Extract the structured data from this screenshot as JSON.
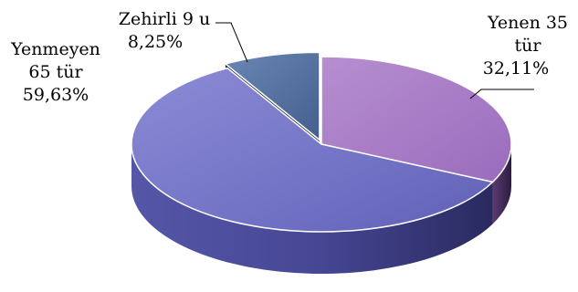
{
  "chart_data": {
    "type": "pie",
    "title": "",
    "slices": [
      {
        "label_lines": [
          "Yenen 35",
          "tür"
        ],
        "value_label": "32,11%",
        "value": 32.11,
        "color": "#a777c4"
      },
      {
        "label_lines": [
          "Yenmeyen",
          "65 tür"
        ],
        "value_label": "59,63%",
        "value": 59.63,
        "color": "#7272c6"
      },
      {
        "label_lines": [
          "Zehirli 9 u"
        ],
        "value_label": "8,25%",
        "value": 8.25,
        "color": "#4d6b97",
        "exploded": true
      }
    ],
    "legend": "none",
    "style": "3d"
  }
}
